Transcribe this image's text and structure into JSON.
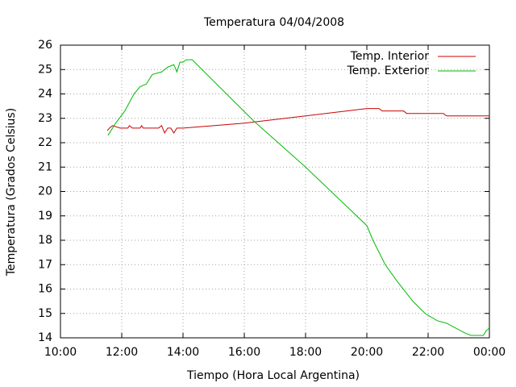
{
  "chart_data": {
    "type": "line",
    "title": "Temperatura 04/04/2008",
    "xlabel": "Tiempo (Hora Local Argentina)",
    "ylabel": "Temperatura (Grados Celsius)",
    "xlim": [
      10,
      24
    ],
    "ylim": [
      14,
      26
    ],
    "xticks": [
      {
        "value": 10,
        "label": "10:00"
      },
      {
        "value": 12,
        "label": "12:00"
      },
      {
        "value": 14,
        "label": "14:00"
      },
      {
        "value": 16,
        "label": "16:00"
      },
      {
        "value": 18,
        "label": "18:00"
      },
      {
        "value": 20,
        "label": "20:00"
      },
      {
        "value": 22,
        "label": "22:00"
      },
      {
        "value": 24,
        "label": "00:00"
      }
    ],
    "yticks": [
      14,
      15,
      16,
      17,
      18,
      19,
      20,
      21,
      22,
      23,
      24,
      25,
      26
    ],
    "grid": true,
    "legend": "upper-right",
    "series": [
      {
        "name": "Temp. Interior",
        "color": "#cc0000",
        "x": [
          11.53,
          11.6,
          11.7,
          11.95,
          12.2,
          12.25,
          12.35,
          12.6,
          12.65,
          12.7,
          13.2,
          13.3,
          13.4,
          13.5,
          13.6,
          13.7,
          13.8,
          14.0,
          16.0,
          18.0,
          20.0,
          20.4,
          20.5,
          21.2,
          21.3,
          22.5,
          22.6,
          24.0
        ],
        "values": [
          22.5,
          22.6,
          22.7,
          22.6,
          22.6,
          22.7,
          22.6,
          22.6,
          22.7,
          22.6,
          22.6,
          22.7,
          22.4,
          22.6,
          22.6,
          22.4,
          22.6,
          22.6,
          22.8,
          23.1,
          23.4,
          23.4,
          23.3,
          23.3,
          23.2,
          23.2,
          23.1,
          23.1
        ]
      },
      {
        "name": "Temp. Exterior",
        "color": "#00bb00",
        "x": [
          11.55,
          11.8,
          12.1,
          12.4,
          12.6,
          12.8,
          13.0,
          13.3,
          13.5,
          13.7,
          13.8,
          13.9,
          14.0,
          14.1,
          14.3,
          16.3,
          18.0,
          20.0,
          20.2,
          20.6,
          21.0,
          21.5,
          21.9,
          22.3,
          22.6,
          22.9,
          23.2,
          23.4,
          23.8,
          23.9,
          24.0
        ],
        "values": [
          22.3,
          22.8,
          23.3,
          24.0,
          24.3,
          24.4,
          24.8,
          24.9,
          25.1,
          25.2,
          24.9,
          25.3,
          25.3,
          25.4,
          25.4,
          22.9,
          21.0,
          18.6,
          18.0,
          17.0,
          16.3,
          15.5,
          15.0,
          14.7,
          14.6,
          14.4,
          14.2,
          14.1,
          14.1,
          14.3,
          14.4
        ]
      }
    ]
  }
}
